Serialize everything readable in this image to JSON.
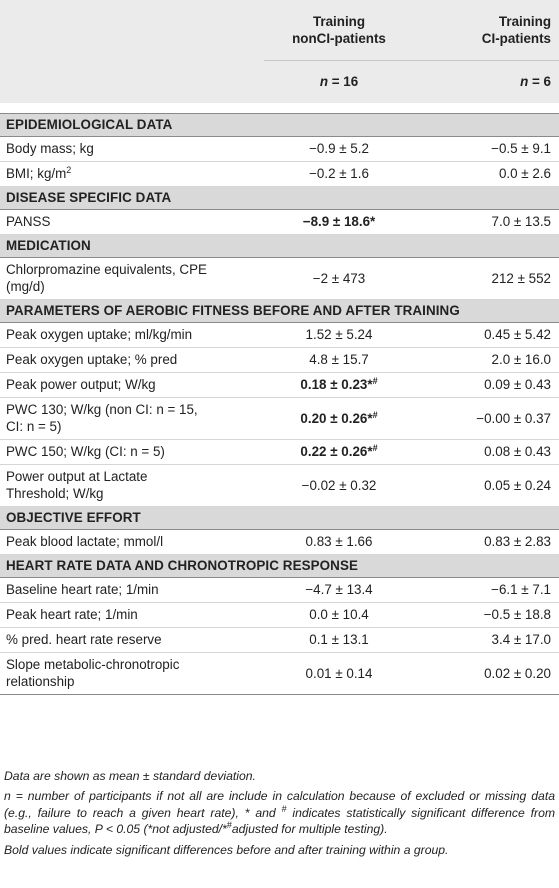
{
  "header": {
    "col1_title_line1": "Training",
    "col1_title_line2": "nonCI-patients",
    "col2_title_line1": "Training",
    "col2_title_line2": "CI-patients",
    "col1_n_label": "n",
    "col1_n_eq": " = 16",
    "col2_n_label": "n",
    "col2_n_eq": " = 6"
  },
  "sections": [
    {
      "title": "EPIDEMIOLOGICAL DATA",
      "rows": [
        {
          "label": "Body mass; kg",
          "v1": "−0.9 ± 5.2",
          "v2": "−0.5 ± 9.1"
        },
        {
          "label_pre": "BMI; kg/m",
          "label_sup": "2",
          "v1": "−0.2 ± 1.6",
          "v2": "0.0 ± 2.6"
        }
      ]
    },
    {
      "title": "DISEASE SPECIFIC DATA",
      "rows": [
        {
          "label": "PANSS",
          "v1": "−8.9 ± 18.6*",
          "v2": "7.0 ± 13.5"
        }
      ]
    },
    {
      "title": "MEDICATION",
      "rows": [
        {
          "label_line1": "Chlorpromazine equivalents, CPE",
          "label_line2": "(mg/d)",
          "v1": "−2 ± 473",
          "v2": "212 ± 552"
        }
      ]
    },
    {
      "title": "PARAMETERS OF AEROBIC FITNESS BEFORE AND AFTER TRAINING",
      "rows": [
        {
          "label": "Peak oxygen uptake; ml/kg/min",
          "v1": "1.52 ± 5.24",
          "v2": "0.45 ± 5.42"
        },
        {
          "label": "Peak oxygen uptake; % pred",
          "v1": "4.8 ± 15.7",
          "v2": "2.0 ± 16.0"
        },
        {
          "label": "Peak power output; W/kg",
          "v1": "0.18 ± 0.23*",
          "v1_sup": "#",
          "v2": "0.09 ± 0.43"
        },
        {
          "label_line1": "PWC 130; W/kg (non CI: n = 15,",
          "label_line2": "CI: n = 5)",
          "v1": "0.20 ± 0.26*",
          "v1_sup": "#",
          "v2": "−0.00 ± 0.37"
        },
        {
          "label": "PWC 150; W/kg (CI: n = 5)",
          "v1": "0.22 ± 0.26*",
          "v1_sup": "#",
          "v2": "0.08 ± 0.43"
        },
        {
          "label_line1": "Power output at Lactate",
          "label_line2": "Threshold; W/kg",
          "v1": "−0.02 ± 0.32",
          "v2": "0.05 ± 0.24"
        }
      ]
    },
    {
      "title": "OBJECTIVE EFFORT",
      "rows": [
        {
          "label": "Peak blood lactate; mmol/l",
          "v1": "0.83 ± 1.66",
          "v2": "0.83 ± 2.83"
        }
      ]
    },
    {
      "title": "HEART RATE DATA AND CHRONOTROPIC RESPONSE",
      "rows": [
        {
          "label": "Baseline heart rate; 1/min",
          "v1": "−4.7 ± 13.4",
          "v2": "−6.1 ± 7.1"
        },
        {
          "label": "Peak heart rate; 1/min",
          "v1": "0.0 ± 10.4",
          "v2": "−0.5 ± 18.8"
        },
        {
          "label": "% pred. heart rate reserve",
          "v1": "0.1 ± 13.1",
          "v2": "3.4 ± 17.0"
        },
        {
          "label_line1": "Slope metabolic-chronotropic",
          "label_line2": "relationship",
          "v1": "0.01 ± 0.14",
          "v2": "0.02 ± 0.20"
        }
      ]
    }
  ],
  "notes": {
    "line1": "Data are shown as mean ± standard deviation.",
    "line2_a": "n = number of participants if not all are include in calculation because of excluded or missing data (e.g., failure to reach a given heart rate), * and ",
    "line2_sup": "#",
    "line2_b": " indicates statistically significant difference from baseline values, P < 0.05 (*not adjusted/*",
    "line2_sup2": "#",
    "line2_c": "adjusted for multiple testing).",
    "line3": "Bold values indicate significant differences before and after training within a group."
  }
}
